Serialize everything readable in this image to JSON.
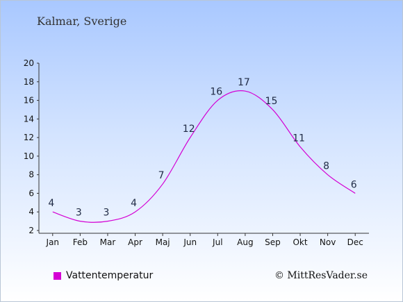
{
  "chart_data": {
    "type": "line",
    "title": "Kalmar, Sverige",
    "categories": [
      "Jan",
      "Feb",
      "Mar",
      "Apr",
      "Maj",
      "Jun",
      "Jul",
      "Aug",
      "Sep",
      "Okt",
      "Nov",
      "Dec"
    ],
    "series": [
      {
        "name": "Vattentemperatur",
        "values": [
          4,
          3,
          3,
          4,
          7,
          12,
          16,
          17,
          15,
          11,
          8,
          6
        ]
      }
    ],
    "ylim": [
      2,
      20
    ],
    "yticks": [
      2,
      4,
      6,
      8,
      10,
      12,
      14,
      16,
      18,
      20
    ],
    "line_color": "#d400d4",
    "legend_position": "bottom-left"
  },
  "credit": "© MittResVader.se"
}
